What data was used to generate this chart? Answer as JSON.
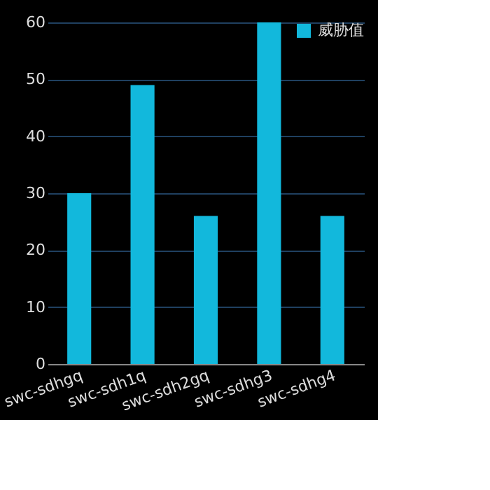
{
  "chart_data": {
    "type": "bar",
    "categories": [
      "swc-sdhgq",
      "swc-sdh1q",
      "swc-sdh2gq",
      "swc-sdhg3",
      "swc-sdhg4"
    ],
    "series": [
      {
        "name": "威胁值",
        "color": "#12b8dc",
        "values": [
          30,
          49,
          26,
          60,
          26
        ]
      }
    ],
    "ylim": [
      0,
      60
    ],
    "yticks": [
      0,
      10,
      20,
      30,
      40,
      50,
      60
    ],
    "grid": "y",
    "legend": "top right"
  }
}
